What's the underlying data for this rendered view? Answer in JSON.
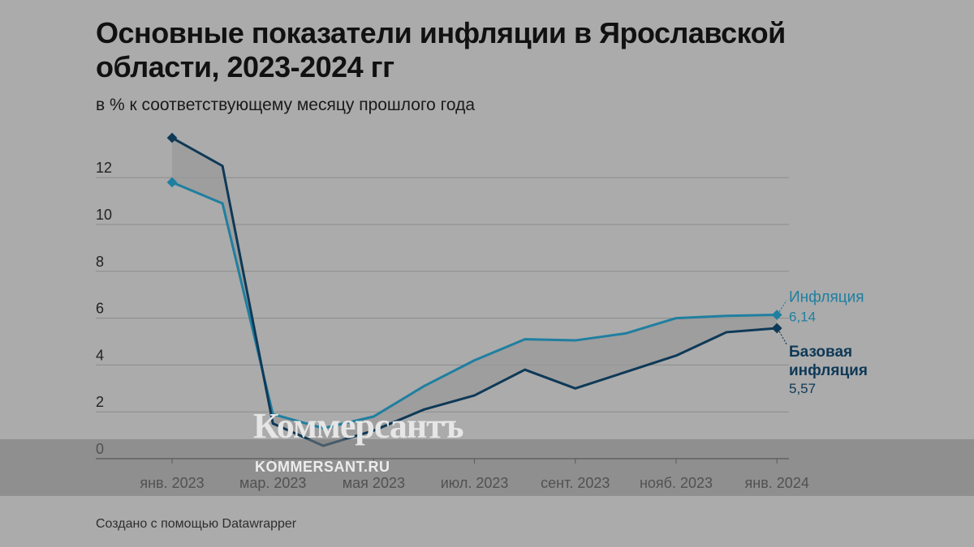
{
  "title": "Основные показатели инфляции в Ярославской области, 2023-2024 гг",
  "subtitle": "в % к соответствующему месяцу прошлого года",
  "footer": "Создано с помощью Datawrapper",
  "watermark": {
    "logo": "Коммерсантъ",
    "url": "KOMMERSANT.RU"
  },
  "chart_data": {
    "type": "line",
    "x": [
      "2023-01",
      "2023-02",
      "2023-03",
      "2023-04",
      "2023-05",
      "2023-06",
      "2023-07",
      "2023-08",
      "2023-09",
      "2023-10",
      "2023-11",
      "2023-12",
      "2024-01"
    ],
    "x_tick_labels": [
      "янв. 2023",
      "мар. 2023",
      "мая 2023",
      "июл. 2023",
      "сент. 2023",
      "нояб. 2023",
      "янв. 2024"
    ],
    "y_ticks": [
      0,
      2,
      4,
      6,
      8,
      10,
      12
    ],
    "ylim": [
      0,
      13.8
    ],
    "grid": true,
    "series": [
      {
        "name": "Инфляция",
        "label_lines": [
          "Инфляция"
        ],
        "end_label": "6,14",
        "color": "#1f7fa0",
        "values": [
          11.8,
          10.9,
          1.9,
          1.3,
          1.8,
          3.1,
          4.2,
          5.1,
          5.05,
          5.35,
          6.0,
          6.1,
          6.14
        ]
      },
      {
        "name": "Базовая инфляция",
        "label_lines": [
          "Базовая",
          "инфляция"
        ],
        "end_label": "5,57",
        "color": "#0e3957",
        "values": [
          13.7,
          12.5,
          1.5,
          0.55,
          1.2,
          2.1,
          2.7,
          3.8,
          3.0,
          3.7,
          4.4,
          5.4,
          5.57
        ]
      }
    ],
    "band_color": "#9a9a9a"
  }
}
